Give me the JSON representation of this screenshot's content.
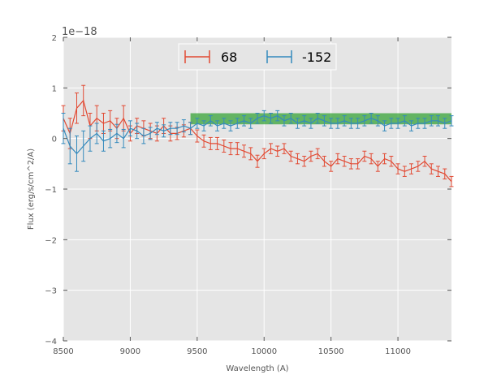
{
  "chart_data": {
    "type": "line",
    "title": "",
    "xlabel": "Wavelength (A)",
    "ylabel": "Flux (erg/s/cm^2/A)",
    "y_offset_label": "1e−18",
    "xlim": [
      8500,
      11400
    ],
    "ylim": [
      -4,
      2
    ],
    "x_ticks": [
      8500,
      9000,
      9500,
      10000,
      10500,
      11000
    ],
    "x_tick_labels": [
      "8500",
      "9000",
      "9500",
      "10000",
      "10500",
      "11000"
    ],
    "y_ticks": [
      -4,
      -3,
      -2,
      -1,
      0,
      1,
      2
    ],
    "y_tick_labels": [
      "−4",
      "−3",
      "−2",
      "−1",
      "0",
      "1",
      "2"
    ],
    "grid": true,
    "legend_position": "top-center",
    "band": {
      "x_start": 9450,
      "x_end": 11400,
      "y_low": 0.28,
      "y_high": 0.5,
      "color": "#2ca02c"
    },
    "series": [
      {
        "name": "68",
        "color": "#e24a33",
        "x": [
          8500,
          8550,
          8600,
          8650,
          8700,
          8750,
          8800,
          8850,
          8900,
          8950,
          9000,
          9050,
          9100,
          9150,
          9200,
          9250,
          9300,
          9350,
          9400,
          9450,
          9500,
          9550,
          9600,
          9650,
          9700,
          9750,
          9800,
          9850,
          9900,
          9950,
          10000,
          10050,
          10100,
          10150,
          10200,
          10250,
          10300,
          10350,
          10400,
          10450,
          10500,
          10550,
          10600,
          10650,
          10700,
          10750,
          10800,
          10850,
          10900,
          10950,
          11000,
          11050,
          11100,
          11150,
          11200,
          11250,
          11300,
          11350,
          11400
        ],
        "y": [
          0.4,
          0.1,
          0.6,
          0.75,
          0.25,
          0.4,
          0.3,
          0.35,
          0.2,
          0.4,
          0.1,
          0.25,
          0.2,
          0.15,
          0.1,
          0.25,
          0.1,
          0.1,
          0.15,
          0.2,
          0.05,
          -0.05,
          -0.1,
          -0.1,
          -0.15,
          -0.2,
          -0.2,
          -0.25,
          -0.3,
          -0.45,
          -0.3,
          -0.2,
          -0.25,
          -0.2,
          -0.35,
          -0.4,
          -0.45,
          -0.35,
          -0.3,
          -0.45,
          -0.55,
          -0.4,
          -0.45,
          -0.5,
          -0.5,
          -0.35,
          -0.4,
          -0.55,
          -0.4,
          -0.45,
          -0.6,
          -0.65,
          -0.6,
          -0.55,
          -0.45,
          -0.6,
          -0.65,
          -0.7,
          -0.85
        ],
        "err": [
          0.25,
          0.3,
          0.3,
          0.3,
          0.25,
          0.25,
          0.2,
          0.2,
          0.2,
          0.25,
          0.15,
          0.15,
          0.15,
          0.15,
          0.15,
          0.15,
          0.15,
          0.12,
          0.12,
          0.12,
          0.12,
          0.12,
          0.12,
          0.12,
          0.12,
          0.12,
          0.12,
          0.12,
          0.12,
          0.12,
          0.1,
          0.1,
          0.1,
          0.1,
          0.1,
          0.1,
          0.1,
          0.1,
          0.1,
          0.1,
          0.1,
          0.1,
          0.1,
          0.1,
          0.1,
          0.1,
          0.1,
          0.1,
          0.1,
          0.1,
          0.1,
          0.1,
          0.1,
          0.1,
          0.1,
          0.1,
          0.1,
          0.1,
          0.1
        ]
      },
      {
        "name": "-152",
        "color": "#348abd",
        "x": [
          8500,
          8550,
          8600,
          8650,
          8700,
          8750,
          8800,
          8850,
          8900,
          8950,
          9000,
          9050,
          9100,
          9150,
          9200,
          9250,
          9300,
          9350,
          9400,
          9450,
          9500,
          9550,
          9600,
          9650,
          9700,
          9750,
          9800,
          9850,
          9900,
          9950,
          10000,
          10050,
          10100,
          10150,
          10200,
          10250,
          10300,
          10350,
          10400,
          10450,
          10500,
          10550,
          10600,
          10650,
          10700,
          10750,
          10800,
          10850,
          10900,
          10950,
          11000,
          11050,
          11100,
          11150,
          11200,
          11250,
          11300,
          11350,
          11400
        ],
        "y": [
          0.2,
          -0.15,
          -0.3,
          -0.15,
          0.0,
          0.1,
          -0.05,
          0.0,
          0.1,
          0.0,
          0.2,
          0.15,
          0.05,
          0.1,
          0.2,
          0.15,
          0.2,
          0.2,
          0.25,
          0.2,
          0.3,
          0.25,
          0.35,
          0.25,
          0.3,
          0.25,
          0.3,
          0.35,
          0.3,
          0.4,
          0.45,
          0.4,
          0.45,
          0.35,
          0.4,
          0.3,
          0.35,
          0.3,
          0.4,
          0.35,
          0.3,
          0.3,
          0.35,
          0.3,
          0.3,
          0.35,
          0.4,
          0.35,
          0.25,
          0.3,
          0.3,
          0.35,
          0.25,
          0.3,
          0.3,
          0.35,
          0.35,
          0.3,
          0.35
        ],
        "err": [
          0.3,
          0.35,
          0.35,
          0.3,
          0.25,
          0.2,
          0.2,
          0.18,
          0.18,
          0.18,
          0.15,
          0.15,
          0.15,
          0.12,
          0.12,
          0.12,
          0.12,
          0.12,
          0.12,
          0.12,
          0.1,
          0.1,
          0.1,
          0.1,
          0.1,
          0.1,
          0.1,
          0.1,
          0.1,
          0.1,
          0.1,
          0.1,
          0.1,
          0.1,
          0.1,
          0.1,
          0.1,
          0.1,
          0.1,
          0.1,
          0.1,
          0.1,
          0.1,
          0.1,
          0.1,
          0.1,
          0.1,
          0.1,
          0.1,
          0.1,
          0.1,
          0.1,
          0.1,
          0.1,
          0.1,
          0.1,
          0.1,
          0.1,
          0.1
        ]
      }
    ]
  }
}
